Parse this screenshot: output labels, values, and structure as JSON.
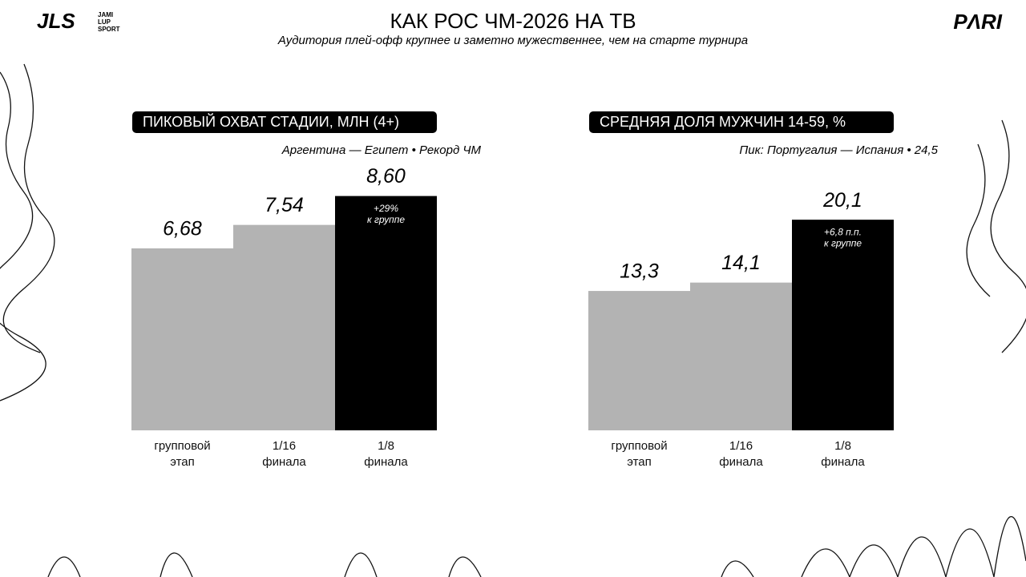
{
  "header": {
    "title": "КАК РОС ЧМ-2026 НА ТВ",
    "subtitle": "Аудитория плей-офф крупнее и заметно мужественнее, чем на старте турнира",
    "left_logo": "JLS",
    "left_logo_text": [
      "JAMI",
      "LUP",
      "SPORT"
    ],
    "right_logo": "PΛRI"
  },
  "chart_data": [
    {
      "type": "bar",
      "title": "ПИКОВЫЙ ОХВАТ СТАДИИ, МЛН (4+)",
      "subtitle": "Аргентина — Египет  •  Рекорд ЧМ",
      "categories": [
        "групповой этап",
        "1/16 финала",
        "1/8 финала"
      ],
      "values": [
        6.68,
        7.54,
        8.6
      ],
      "value_labels": [
        "6,68",
        "7,54",
        "8,60"
      ],
      "colors": [
        "#b3b3b3",
        "#b3b3b3",
        "#000000"
      ],
      "bar_note": [
        "+29%",
        "к группе"
      ],
      "ylim": [
        0,
        10
      ]
    },
    {
      "type": "bar",
      "title": "СРЕДНЯЯ ДОЛЯ МУЖЧИН 14-59, %",
      "subtitle": "Пик: Португалия — Испания  •  24,5",
      "categories": [
        "групповой этап",
        "1/16 финала",
        "1/8 финала"
      ],
      "values": [
        13.3,
        14.1,
        20.1
      ],
      "value_labels": [
        "13,3",
        "14,1",
        "20,1"
      ],
      "colors": [
        "#b3b3b3",
        "#b3b3b3",
        "#000000"
      ],
      "bar_note": [
        "+6,8 п.п.",
        "к группе"
      ],
      "ylim": [
        0,
        26
      ]
    }
  ]
}
